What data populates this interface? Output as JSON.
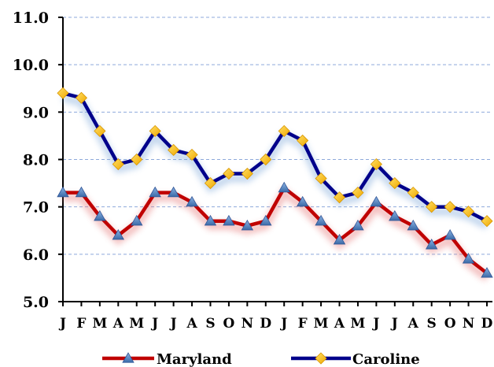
{
  "chart_data": {
    "type": "line",
    "categories": [
      "J",
      "F",
      "M",
      "A",
      "M",
      "J",
      "J",
      "A",
      "S",
      "O",
      "N",
      "D",
      "J",
      "F",
      "M",
      "A",
      "M",
      "J",
      "J",
      "A",
      "S",
      "O",
      "N",
      "D"
    ],
    "series": [
      {
        "name": "Maryland",
        "color": "#c00000",
        "marker": "triangle",
        "marker_color": "#4f81bd",
        "values": [
          7.3,
          7.3,
          6.8,
          6.4,
          6.7,
          7.3,
          7.3,
          7.1,
          6.7,
          6.7,
          6.6,
          6.7,
          7.4,
          7.1,
          6.7,
          6.3,
          6.6,
          7.1,
          6.8,
          6.6,
          6.2,
          6.4,
          5.9,
          5.6
        ]
      },
      {
        "name": "Caroline",
        "color": "#00008b",
        "marker": "diamond",
        "marker_color": "#ffc000",
        "values": [
          9.4,
          9.3,
          8.6,
          7.9,
          8.0,
          8.6,
          8.2,
          8.1,
          7.5,
          7.7,
          7.7,
          8.0,
          8.6,
          8.4,
          7.6,
          7.2,
          7.3,
          7.9,
          7.5,
          7.3,
          7.0,
          7.0,
          6.9,
          6.7
        ]
      }
    ],
    "yticks": [
      "5.0",
      "6.0",
      "7.0",
      "8.0",
      "9.0",
      "10.0",
      "11.0"
    ],
    "ylim": [
      5.0,
      11.0
    ],
    "grid": true,
    "legend_position": "bottom",
    "title": "",
    "xlabel": "",
    "ylabel": ""
  }
}
